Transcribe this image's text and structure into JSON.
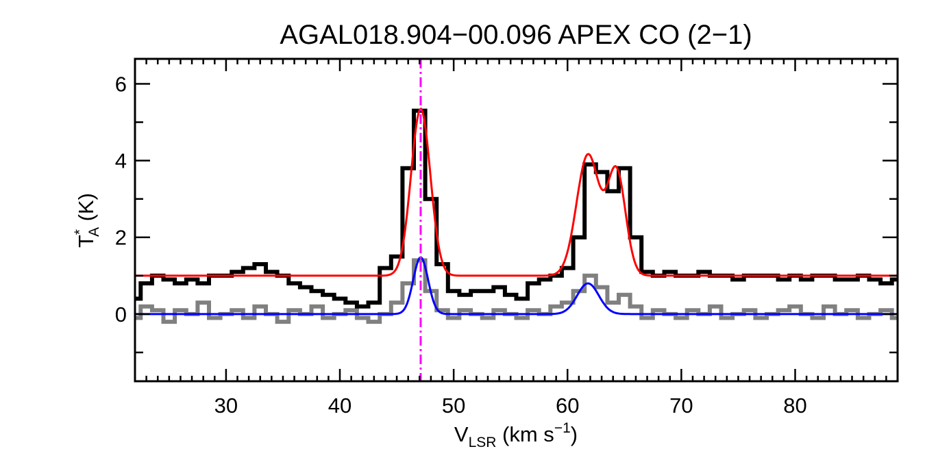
{
  "chart_data": {
    "type": "line",
    "title": "AGAL018.904−00.096  APEX CO (2−1)",
    "xlabel": {
      "main": "V",
      "sub": "LSR",
      "rest": " (km s",
      "sup": "−1",
      "end": ")"
    },
    "ylabel": {
      "main": "T",
      "sup": "*",
      "sub": "A",
      "rest": " (K)"
    },
    "xlim": [
      22,
      89
    ],
    "ylim": [
      -1.75,
      6.65
    ],
    "xticks": [
      30,
      40,
      50,
      60,
      70,
      80
    ],
    "xtick_labels": [
      "30",
      "40",
      "50",
      "60",
      "70",
      "80"
    ],
    "yticks": [
      0,
      2,
      4,
      6
    ],
    "ytick_labels": [
      "0",
      "2",
      "4",
      "6"
    ],
    "vline": {
      "x": 47.1,
      "color": "#ff00ff",
      "style": "dash-dot"
    },
    "series": [
      {
        "role": "observed-offset",
        "color": "#000000",
        "style": "step",
        "x": [
          22,
          23,
          24,
          25,
          26,
          27,
          28,
          29,
          30,
          31,
          32,
          33,
          34,
          35,
          36,
          37,
          38,
          39,
          40,
          41,
          42,
          43,
          44,
          45,
          46,
          47,
          48,
          49,
          50,
          51,
          52,
          53,
          54,
          55,
          56,
          57,
          58,
          59,
          60,
          61,
          62,
          63,
          64,
          65,
          66,
          67,
          68,
          69,
          70,
          71,
          72,
          73,
          74,
          75,
          76,
          77,
          78,
          79,
          80,
          81,
          82,
          83,
          84,
          85,
          86,
          87,
          88,
          89
        ],
        "y": [
          0.4,
          0.8,
          1.0,
          0.9,
          0.8,
          0.9,
          0.8,
          1.0,
          1.0,
          1.1,
          1.2,
          1.3,
          1.1,
          1.0,
          0.8,
          0.7,
          0.6,
          0.5,
          0.4,
          0.3,
          0.2,
          0.3,
          1.2,
          1.5,
          3.8,
          5.3,
          3.0,
          1.3,
          0.6,
          0.5,
          0.6,
          0.6,
          0.7,
          0.5,
          0.4,
          0.8,
          0.9,
          1.0,
          1.2,
          2.0,
          3.9,
          3.7,
          3.2,
          3.8,
          2.0,
          1.1,
          1.0,
          1.1,
          1.0,
          1.0,
          1.1,
          1.0,
          1.0,
          0.9,
          1.0,
          1.0,
          1.0,
          0.9,
          1.0,
          0.9,
          1.0,
          1.0,
          0.9,
          0.9,
          1.0,
          0.9,
          0.8,
          0.9
        ]
      },
      {
        "role": "observed",
        "color": "#808080",
        "style": "step",
        "x": [
          22,
          23,
          24,
          25,
          26,
          27,
          28,
          29,
          30,
          31,
          32,
          33,
          34,
          35,
          36,
          37,
          38,
          39,
          40,
          41,
          42,
          43,
          44,
          45,
          46,
          47,
          48,
          49,
          50,
          51,
          52,
          53,
          54,
          55,
          56,
          57,
          58,
          59,
          60,
          61,
          62,
          63,
          64,
          65,
          66,
          67,
          68,
          69,
          70,
          71,
          72,
          73,
          74,
          75,
          76,
          77,
          78,
          79,
          80,
          81,
          82,
          83,
          84,
          85,
          86,
          87,
          88,
          89
        ],
        "y": [
          -0.1,
          0.2,
          0.1,
          -0.2,
          0.1,
          0.0,
          0.3,
          -0.1,
          0.0,
          0.1,
          -0.1,
          0.2,
          0.0,
          -0.2,
          0.1,
          0.0,
          0.2,
          -0.1,
          0.0,
          0.1,
          -0.1,
          -0.2,
          0.0,
          0.3,
          0.8,
          1.4,
          0.6,
          0.1,
          -0.1,
          0.1,
          0.0,
          -0.1,
          0.1,
          0.0,
          -0.1,
          0.1,
          0.0,
          0.2,
          0.3,
          0.6,
          1.0,
          0.7,
          0.3,
          0.5,
          0.2,
          -0.1,
          0.1,
          0.0,
          -0.1,
          0.1,
          0.0,
          0.2,
          -0.1,
          0.0,
          0.1,
          -0.1,
          0.0,
          0.1,
          0.2,
          0.0,
          -0.1,
          0.2,
          0.0,
          0.1,
          -0.1,
          0.0,
          0.1,
          -0.1
        ]
      },
      {
        "role": "fit-offset",
        "color": "#ff0000",
        "style": "smooth",
        "baseline": 1.0,
        "components": [
          {
            "center": 47.1,
            "amp": 4.35,
            "sigma": 0.85
          },
          {
            "center": 61.8,
            "amp": 3.15,
            "sigma": 1.0
          },
          {
            "center": 64.3,
            "amp": 2.7,
            "sigma": 0.8
          }
        ]
      },
      {
        "role": "fit",
        "color": "#0000ff",
        "style": "smooth",
        "baseline": 0.0,
        "components": [
          {
            "center": 47.1,
            "amp": 1.48,
            "sigma": 0.65
          },
          {
            "center": 61.8,
            "amp": 0.8,
            "sigma": 0.95
          }
        ]
      }
    ]
  }
}
